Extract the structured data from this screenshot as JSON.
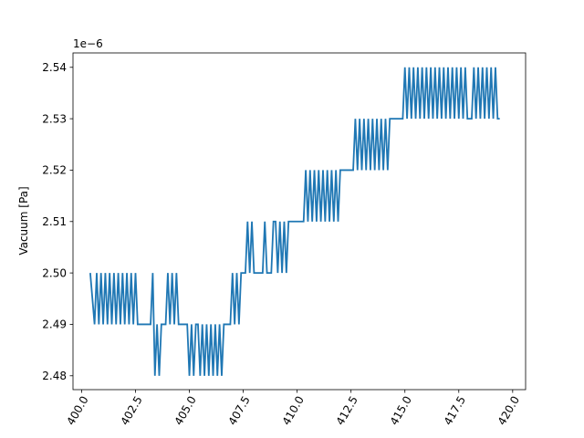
{
  "chart_data": {
    "type": "line",
    "title": "",
    "xlabel": "",
    "ylabel": "Vacuum [Pa]",
    "y_offset_label": "1e−6",
    "xlim": [
      399.6,
      420.6
    ],
    "ylim": [
      2.4773,
      2.5428
    ],
    "x_ticks": [
      400.0,
      402.5,
      405.0,
      407.5,
      410.0,
      412.5,
      415.0,
      417.5,
      420.0
    ],
    "x_tick_labels": [
      "400.0",
      "402.5",
      "405.0",
      "407.5",
      "410.0",
      "412.5",
      "415.0",
      "417.5",
      "420.0"
    ],
    "y_ticks": [
      2.48,
      2.49,
      2.5,
      2.51,
      2.52,
      2.53,
      2.54
    ],
    "y_tick_labels": [
      "2.48",
      "2.49",
      "2.50",
      "2.51",
      "2.52",
      "2.53",
      "2.54"
    ],
    "x_tick_rotation_deg": 60,
    "grid": false,
    "legend": "none",
    "series": [
      {
        "color": "#1f77b4",
        "note_units": "y values are multiples of 1e-6 Pa",
        "x": [
          400.4,
          400.6,
          400.7,
          400.8,
          400.9,
          401.0,
          401.1,
          401.2,
          401.3,
          401.4,
          401.5,
          401.6,
          401.7,
          401.8,
          401.9,
          402.0,
          402.1,
          402.2,
          402.3,
          402.4,
          402.5,
          402.6,
          402.7,
          402.8,
          402.9,
          403.0,
          403.1,
          403.2,
          403.3,
          403.4,
          403.5,
          403.6,
          403.7,
          403.8,
          403.9,
          404.0,
          404.1,
          404.2,
          404.3,
          404.4,
          404.5,
          404.6,
          404.7,
          404.8,
          404.9,
          405.0,
          405.1,
          405.2,
          405.3,
          405.4,
          405.5,
          405.6,
          405.7,
          405.8,
          405.9,
          406.0,
          406.1,
          406.2,
          406.3,
          406.4,
          406.5,
          406.6,
          406.7,
          406.8,
          406.9,
          407.0,
          407.1,
          407.2,
          407.3,
          407.4,
          407.5,
          407.6,
          407.7,
          407.8,
          407.9,
          408.0,
          408.1,
          408.2,
          408.3,
          408.4,
          408.5,
          408.6,
          408.7,
          408.8,
          408.9,
          409.0,
          409.1,
          409.2,
          409.3,
          409.4,
          409.5,
          409.6,
          409.7,
          409.8,
          409.9,
          410.0,
          410.1,
          410.2,
          410.3,
          410.4,
          410.5,
          410.6,
          410.7,
          410.8,
          410.9,
          411.0,
          411.1,
          411.2,
          411.3,
          411.4,
          411.5,
          411.6,
          411.7,
          411.8,
          411.9,
          412.0,
          412.1,
          412.2,
          412.3,
          412.4,
          412.5,
          412.6,
          412.7,
          412.8,
          412.9,
          413.0,
          413.1,
          413.2,
          413.3,
          413.4,
          413.5,
          413.6,
          413.7,
          413.8,
          413.9,
          414.0,
          414.1,
          414.2,
          414.3,
          414.4,
          414.5,
          414.6,
          414.7,
          414.8,
          414.9,
          415.0,
          415.1,
          415.2,
          415.3,
          415.4,
          415.5,
          415.6,
          415.7,
          415.8,
          415.9,
          416.0,
          416.1,
          416.2,
          416.3,
          416.4,
          416.5,
          416.6,
          416.7,
          416.8,
          416.9,
          417.0,
          417.1,
          417.2,
          417.3,
          417.4,
          417.5,
          417.6,
          417.7,
          417.8,
          417.9,
          418.0,
          418.1,
          418.2,
          418.3,
          418.4,
          418.5,
          418.6,
          418.7,
          418.8,
          418.9,
          419.0,
          419.1,
          419.2,
          419.3,
          419.4
        ],
        "y": [
          2.5,
          2.49,
          2.5,
          2.49,
          2.5,
          2.49,
          2.5,
          2.49,
          2.5,
          2.49,
          2.5,
          2.49,
          2.5,
          2.49,
          2.5,
          2.49,
          2.5,
          2.49,
          2.5,
          2.49,
          2.5,
          2.49,
          2.49,
          2.49,
          2.49,
          2.49,
          2.49,
          2.49,
          2.5,
          2.48,
          2.49,
          2.48,
          2.49,
          2.49,
          2.49,
          2.5,
          2.49,
          2.5,
          2.49,
          2.5,
          2.49,
          2.49,
          2.49,
          2.49,
          2.49,
          2.48,
          2.49,
          2.48,
          2.49,
          2.49,
          2.48,
          2.49,
          2.48,
          2.49,
          2.48,
          2.49,
          2.48,
          2.49,
          2.48,
          2.49,
          2.48,
          2.49,
          2.49,
          2.49,
          2.49,
          2.5,
          2.49,
          2.5,
          2.49,
          2.5,
          2.5,
          2.5,
          2.51,
          2.5,
          2.51,
          2.5,
          2.5,
          2.5,
          2.5,
          2.5,
          2.51,
          2.5,
          2.5,
          2.5,
          2.51,
          2.51,
          2.5,
          2.51,
          2.5,
          2.51,
          2.5,
          2.51,
          2.51,
          2.51,
          2.51,
          2.51,
          2.51,
          2.51,
          2.51,
          2.52,
          2.51,
          2.52,
          2.51,
          2.52,
          2.51,
          2.52,
          2.51,
          2.52,
          2.51,
          2.52,
          2.51,
          2.52,
          2.51,
          2.52,
          2.51,
          2.52,
          2.52,
          2.52,
          2.52,
          2.52,
          2.52,
          2.52,
          2.53,
          2.52,
          2.53,
          2.52,
          2.53,
          2.52,
          2.53,
          2.52,
          2.53,
          2.52,
          2.53,
          2.52,
          2.53,
          2.52,
          2.53,
          2.52,
          2.53,
          2.53,
          2.53,
          2.53,
          2.53,
          2.53,
          2.53,
          2.54,
          2.53,
          2.54,
          2.53,
          2.54,
          2.53,
          2.54,
          2.53,
          2.54,
          2.53,
          2.54,
          2.53,
          2.54,
          2.53,
          2.54,
          2.53,
          2.54,
          2.53,
          2.54,
          2.53,
          2.54,
          2.53,
          2.54,
          2.53,
          2.54,
          2.53,
          2.54,
          2.53,
          2.54,
          2.53,
          2.53,
          2.53,
          2.54,
          2.53,
          2.54,
          2.53,
          2.54,
          2.53,
          2.54,
          2.53,
          2.54,
          2.53,
          2.54,
          2.53,
          2.53
        ]
      }
    ]
  }
}
